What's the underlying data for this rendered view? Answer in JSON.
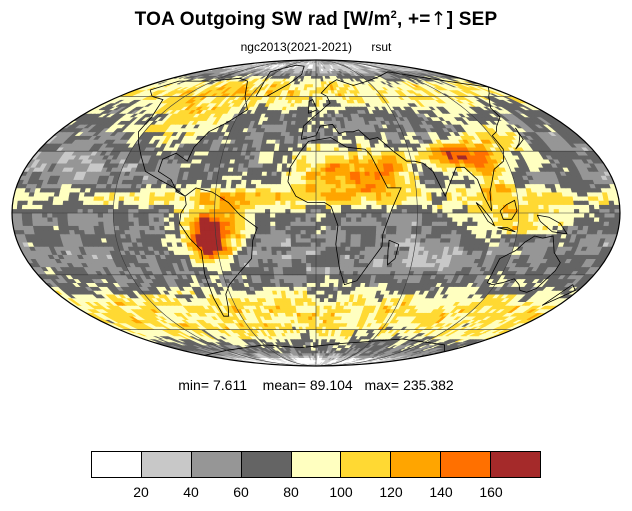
{
  "title": {
    "prefix": "TOA Outgoing SW rad [W/m",
    "sup": "2",
    "suffix": ", +=",
    "arrow": "↑",
    "end": "] SEP"
  },
  "subtitle": {
    "left": "ngc2013(2021-2021)",
    "right": "rsut"
  },
  "stats": {
    "min_label": "min=",
    "min_value": "7.611",
    "mean_label": "mean=",
    "mean_value": "89.104",
    "max_label": "max=",
    "max_value": "235.382"
  },
  "colorbar": {
    "colors": [
      "#ffffff",
      "#c8c8c8",
      "#969696",
      "#646464",
      "#ffffc0",
      "#ffd933",
      "#ffa500",
      "#ff7000",
      "#a52a2a"
    ],
    "labels": [
      "20",
      "40",
      "60",
      "80",
      "100",
      "120",
      "140",
      "160"
    ]
  },
  "chart_data": {
    "type": "heatmap",
    "projection": "mollweide",
    "variable": "rsut",
    "units": "W/m2",
    "levels": [
      20,
      40,
      60,
      80,
      100,
      120,
      140,
      160
    ],
    "colors": [
      "#ffffff",
      "#c8c8c8",
      "#969696",
      "#646464",
      "#ffffc0",
      "#ffd933",
      "#ffa500",
      "#ff7000",
      "#a52a2a"
    ],
    "min": 7.611,
    "mean": 89.104,
    "max": 235.382,
    "grid": true,
    "lat_lines": [
      -60,
      -30,
      0,
      30,
      60
    ],
    "lon_lines": [
      -120,
      -60,
      0,
      60,
      120
    ]
  }
}
